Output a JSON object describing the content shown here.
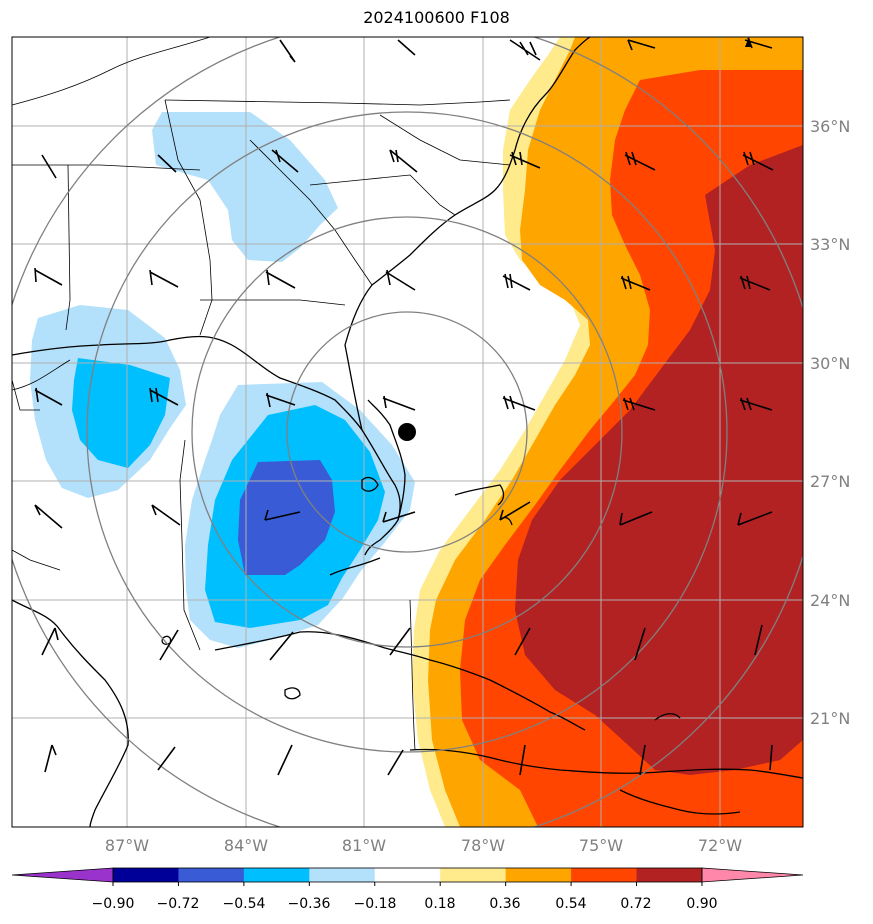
{
  "title": "2024100600 F108",
  "lat_labels": [
    "36°N",
    "33°N",
    "30°N",
    "27°N",
    "24°N",
    "21°N"
  ],
  "lon_labels": [
    "87°W",
    "84°W",
    "81°W",
    "78°W",
    "75°W",
    "72°W"
  ],
  "colorbar": {
    "ticks": [
      "−0.90",
      "−0.72",
      "−0.54",
      "−0.36",
      "−0.18",
      "0.18",
      "0.36",
      "0.54",
      "0.72",
      "0.90"
    ],
    "colors": [
      "#9933cc",
      "#000099",
      "#3a5bd6",
      "#00bfff",
      "#b3e0fa",
      "#ffffff",
      "#ffea8c",
      "#ffa500",
      "#ff4500",
      "#b22222",
      "#ff88aa"
    ]
  },
  "colors": {
    "light_blue": "#b3e0fa",
    "blue": "#00bfff",
    "royal_blue": "#3a5bd6",
    "light_yellow": "#ffea8c",
    "orange": "#ffa500",
    "red_orange": "#ff4500",
    "dark_red": "#b22222",
    "grid": "#b0b0b0",
    "range_rings": "#808080",
    "axis_label": "#808080"
  },
  "storm_center_marker": "filled-circle"
}
